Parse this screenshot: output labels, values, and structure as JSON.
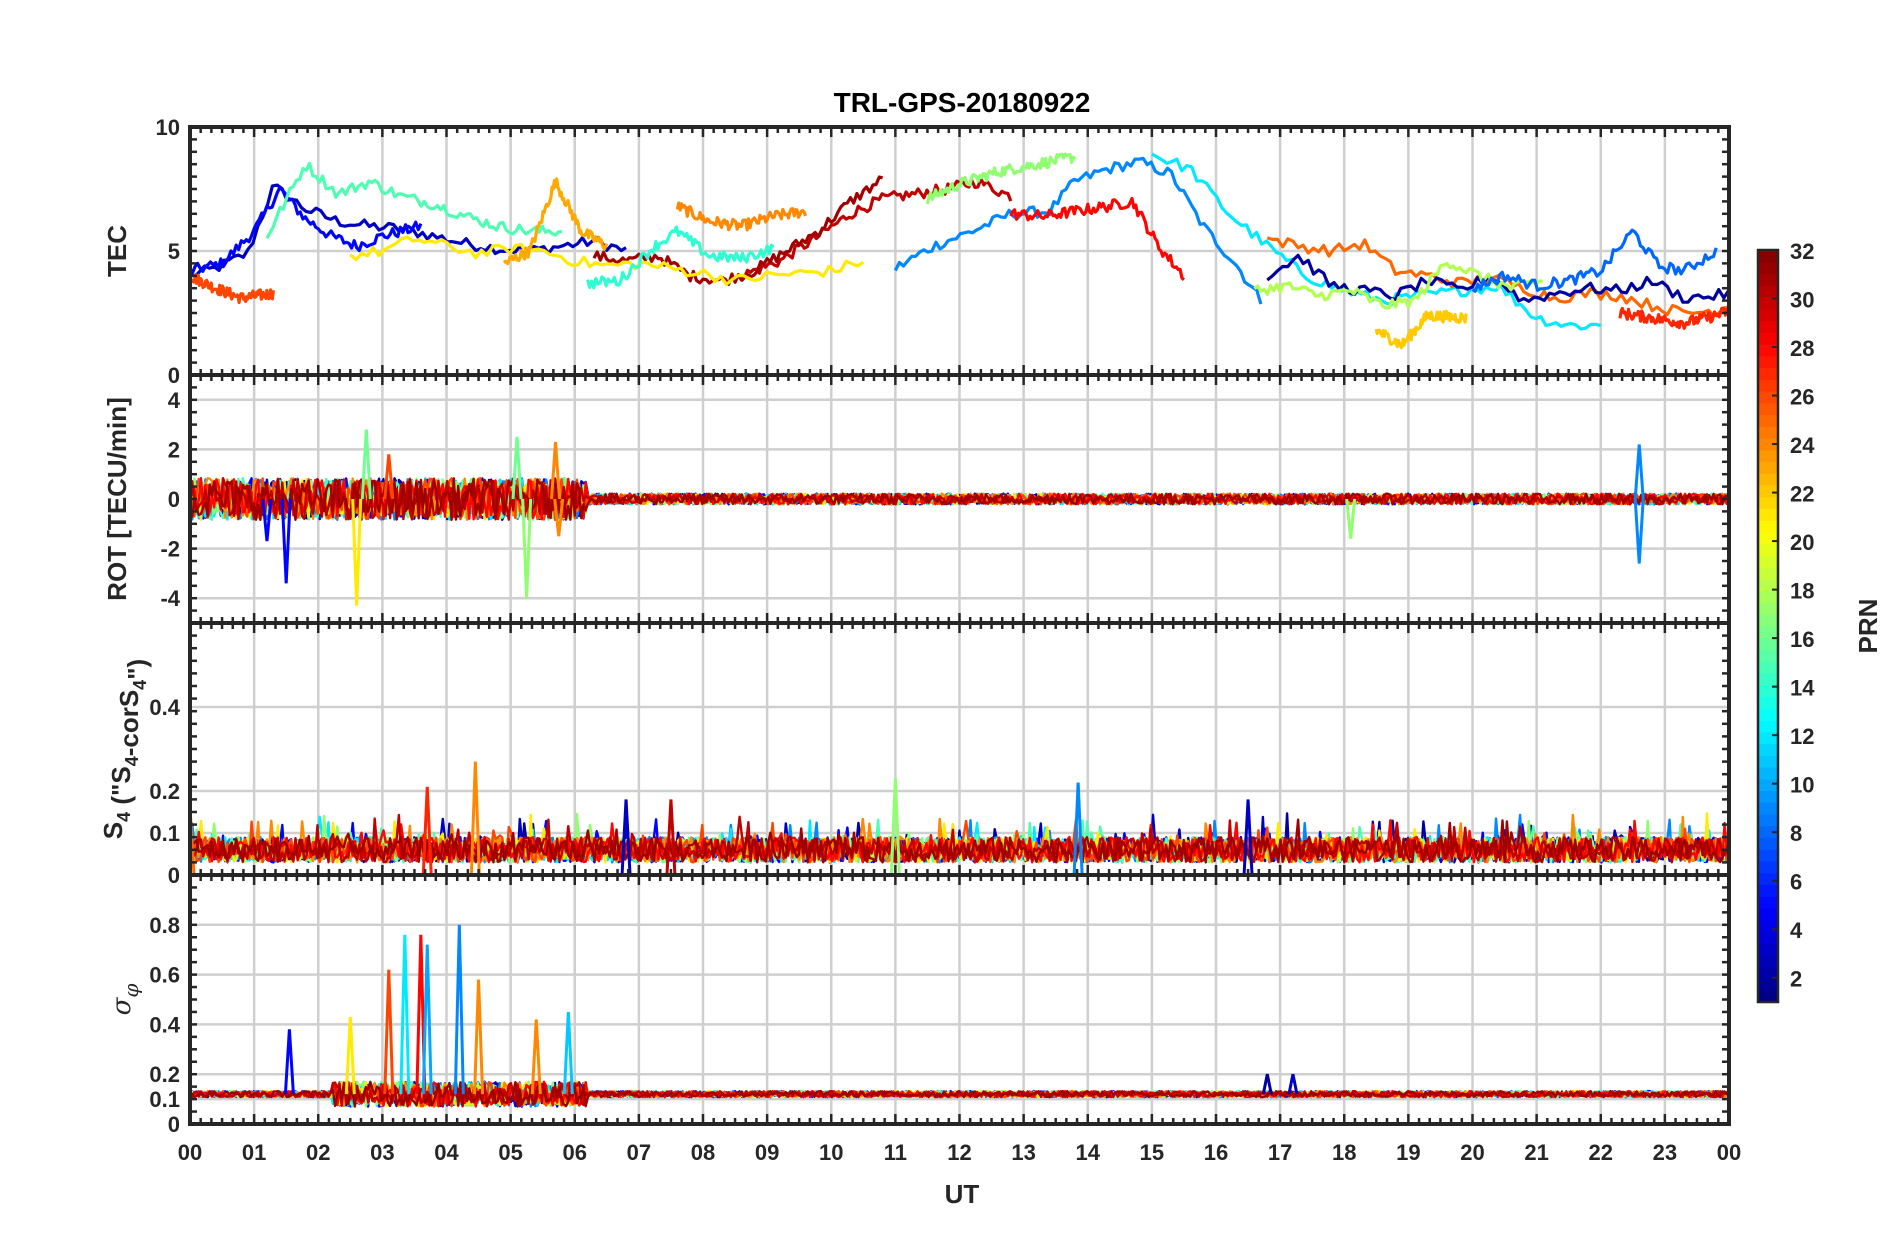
{
  "chart_data": {
    "type": "line",
    "title": "TRL-GPS-20180922",
    "xlabel": "UT",
    "x_ticks": [
      "00",
      "01",
      "02",
      "03",
      "04",
      "05",
      "06",
      "07",
      "08",
      "09",
      "10",
      "11",
      "12",
      "13",
      "14",
      "15",
      "16",
      "17",
      "18",
      "19",
      "20",
      "21",
      "22",
      "23",
      "00"
    ],
    "x_range": [
      0,
      24
    ],
    "colorbar": {
      "label": "PRN",
      "range": [
        1,
        32
      ],
      "ticks": [
        "2",
        "4",
        "6",
        "8",
        "10",
        "12",
        "14",
        "16",
        "18",
        "20",
        "22",
        "24",
        "26",
        "28",
        "30",
        "32"
      ],
      "colormap": "jet"
    },
    "panels": [
      {
        "name": "TEC",
        "ylabel": "TEC",
        "ylim": [
          0,
          10
        ],
        "yticks": [
          "0",
          "5",
          "10"
        ],
        "ytick_values": [
          0,
          5,
          10
        ],
        "series": [
          {
            "prn": 3,
            "x": [
              0,
              0.4,
              0.9,
              1.3,
              1.8,
              2.3,
              2.8,
              3.3,
              3.8,
              4.3,
              4.8,
              5.3,
              5.8,
              6.3,
              6.8
            ],
            "y": [
              4.0,
              4.3,
              4.9,
              7.6,
              6.7,
              6.2,
              6.0,
              5.9,
              5.6,
              5.3,
              5.1,
              5.0,
              5.2,
              5.4,
              5.0
            ]
          },
          {
            "prn": 5,
            "x": [
              0,
              0.5,
              1.0,
              1.4,
              1.8,
              2.2,
              2.6,
              3.0,
              3.6
            ],
            "y": [
              4.2,
              4.5,
              5.8,
              7.5,
              6.3,
              5.6,
              5.2,
              5.6,
              6.0
            ]
          },
          {
            "prn": 9,
            "x": [
              11.0,
              11.6,
              12.2,
              12.8,
              13.4,
              13.8,
              14.3,
              14.8,
              15.3,
              15.8,
              16.3,
              16.7
            ],
            "y": [
              4.3,
              5.2,
              5.8,
              6.5,
              6.6,
              7.8,
              8.3,
              8.6,
              8.1,
              6.0,
              4.5,
              3.0
            ]
          },
          {
            "prn": 30,
            "x": [
              8.6,
              9.2,
              9.8,
              10.3,
              10.8,
              11.3,
              11.8,
              12.3,
              12.8
            ],
            "y": [
              4.0,
              4.6,
              5.6,
              6.5,
              7.1,
              7.3,
              7.5,
              7.8,
              7.2
            ]
          },
          {
            "prn": 26,
            "x": [
              0,
              0.4,
              0.8,
              1.3
            ],
            "y": [
              4.0,
              3.5,
              3.1,
              3.3
            ]
          },
          {
            "prn": 31,
            "x": [
              6.3,
              6.8,
              7.3,
              7.8,
              8.3,
              8.8,
              9.3,
              9.8,
              10.3,
              10.8
            ],
            "y": [
              4.8,
              4.6,
              4.8,
              4.0,
              3.8,
              4.2,
              5.0,
              5.8,
              7.0,
              7.9
            ]
          },
          {
            "prn": 24,
            "x": [
              7.6,
              8.1,
              8.6,
              9.1,
              9.6
            ],
            "y": [
              6.8,
              6.2,
              6.0,
              6.4,
              6.6
            ]
          },
          {
            "prn": 12,
            "x": [
              15.0,
              15.6,
              16.2,
              16.8,
              17.4,
              18.0,
              18.6,
              19.2,
              19.8,
              20.4,
              21.0,
              21.5,
              22.0
            ],
            "y": [
              8.9,
              8.3,
              6.5,
              5.2,
              4.0,
              3.4,
              3.0,
              3.2,
              3.4,
              3.6,
              2.3,
              2.0,
              2.0
            ]
          },
          {
            "prn": 15,
            "x": [
              1.2,
              1.8,
              2.3,
              2.8,
              3.3,
              3.8,
              4.3,
              4.8,
              5.3,
              5.8
            ],
            "y": [
              5.6,
              8.5,
              7.3,
              7.8,
              7.2,
              6.9,
              6.4,
              6.0,
              5.8,
              5.8
            ]
          },
          {
            "prn": 17,
            "x": [
              11.5,
              12.0,
              12.6,
              13.2,
              13.8
            ],
            "y": [
              7.1,
              7.7,
              8.2,
              8.5,
              8.8
            ]
          },
          {
            "prn": 21,
            "x": [
              2.5,
              3.0,
              3.5,
              4.0,
              4.5,
              5.0,
              5.5,
              6.0,
              6.5,
              7.0,
              7.5,
              8.0,
              8.5,
              9.0,
              9.5,
              10.0,
              10.5
            ],
            "y": [
              4.8,
              5.0,
              5.5,
              5.2,
              4.9,
              5.1,
              5.0,
              4.6,
              4.4,
              4.5,
              4.3,
              4.1,
              3.8,
              4.0,
              4.1,
              4.2,
              4.6
            ]
          },
          {
            "prn": 23,
            "x": [
              4.9,
              5.3,
              5.7,
              6.1,
              6.5
            ],
            "y": [
              4.5,
              5.0,
              7.8,
              5.8,
              5.2
            ]
          },
          {
            "prn": 28,
            "x": [
              12.8,
              13.3,
              13.8,
              14.3,
              14.7,
              15.1,
              15.5
            ],
            "y": [
              6.5,
              6.4,
              6.6,
              6.8,
              7.0,
              5.2,
              4.0
            ]
          },
          {
            "prn": 25,
            "x": [
              16.8,
              17.3,
              17.8,
              18.3,
              18.8,
              19.3,
              19.8,
              20.3,
              20.8,
              21.3,
              21.8,
              22.3,
              22.8,
              23.3,
              23.8,
              24.0
            ],
            "y": [
              5.5,
              5.2,
              5.0,
              5.3,
              4.2,
              4.0,
              3.7,
              3.9,
              3.5,
              3.1,
              3.3,
              3.2,
              2.8,
              2.5,
              2.6,
              2.8
            ]
          },
          {
            "prn": 2,
            "x": [
              16.8,
              17.3,
              17.8,
              18.3,
              18.8,
              19.3,
              19.8,
              20.3,
              20.8,
              21.3,
              21.8,
              22.3,
              22.8,
              23.3,
              23.8,
              24.0
            ],
            "y": [
              4.0,
              4.8,
              3.6,
              3.4,
              3.2,
              3.8,
              3.4,
              4.0,
              3.0,
              3.3,
              3.5,
              3.4,
              3.8,
              3.1,
              3.2,
              3.3
            ]
          },
          {
            "prn": 18,
            "x": [
              16.6,
              17.1,
              17.6,
              18.1,
              18.6,
              19.1,
              19.6,
              20.1,
              20.6,
              21.1
            ],
            "y": [
              3.4,
              3.6,
              3.2,
              3.4,
              2.8,
              3.0,
              4.6,
              4.0,
              3.5,
              3.8
            ]
          },
          {
            "prn": 22,
            "x": [
              18.5,
              18.9,
              19.3,
              19.9
            ],
            "y": [
              1.8,
              1.2,
              2.4,
              2.3
            ]
          },
          {
            "prn": 8,
            "x": [
              20.0,
              20.5,
              21.0,
              21.5,
              22.0,
              22.5,
              22.9,
              23.3,
              23.8
            ],
            "y": [
              3.5,
              4.0,
              3.6,
              3.8,
              4.2,
              5.8,
              4.4,
              4.2,
              5.0
            ]
          },
          {
            "prn": 14,
            "x": [
              6.2,
              6.7,
              7.2,
              7.6,
              8.1,
              8.6,
              9.1
            ],
            "y": [
              3.7,
              3.8,
              5.1,
              5.8,
              4.8,
              4.7,
              5.1
            ]
          },
          {
            "prn": 27,
            "x": [
              22.3,
              22.8,
              23.3,
              23.8,
              24.0
            ],
            "y": [
              2.5,
              2.3,
              2.1,
              2.4,
              2.6
            ]
          }
        ]
      },
      {
        "name": "ROT",
        "ylabel": "ROT [TECU/min]",
        "ylim": [
          -5,
          5
        ],
        "yticks": [
          "-4",
          "-2",
          "0",
          "2",
          "4"
        ],
        "ytick_values": [
          -4,
          -2,
          0,
          2,
          4
        ],
        "baseline": 0,
        "active_hours": [
          [
            0,
            6.2,
            0.6
          ]
        ],
        "spikes": [
          {
            "x": 1.2,
            "y": -1.7,
            "prn": 5
          },
          {
            "x": 1.5,
            "y": -3.4,
            "prn": 5
          },
          {
            "x": 2.6,
            "y": -4.3,
            "prn": 21
          },
          {
            "x": 2.75,
            "y": 2.8,
            "prn": 16
          },
          {
            "x": 3.1,
            "y": 1.8,
            "prn": 26
          },
          {
            "x": 5.25,
            "y": -4.0,
            "prn": 17
          },
          {
            "x": 5.1,
            "y": 2.5,
            "prn": 16
          },
          {
            "x": 5.7,
            "y": 2.3,
            "prn": 24
          },
          {
            "x": 5.75,
            "y": -1.5,
            "prn": 24
          },
          {
            "x": 18.1,
            "y": -1.6,
            "prn": 17
          },
          {
            "x": 22.6,
            "y": 2.2,
            "prn": 9
          },
          {
            "x": 22.6,
            "y": -2.6,
            "prn": 9
          }
        ]
      },
      {
        "name": "S4",
        "ylabel": "S4 (\"S4-corS4\")",
        "ylim": [
          0,
          0.6
        ],
        "yticks": [
          "0",
          "0.1",
          "0.2",
          "0.4"
        ],
        "ytick_values": [
          0,
          0.1,
          0.2,
          0.4
        ],
        "noise_level": [
          0.02,
          0.1
        ],
        "spikes": [
          {
            "x": 4.45,
            "y": 0.27,
            "prn": 24
          },
          {
            "x": 3.7,
            "y": 0.21,
            "prn": 27
          },
          {
            "x": 11.0,
            "y": 0.23,
            "prn": 17
          },
          {
            "x": 13.85,
            "y": 0.22,
            "prn": 9
          },
          {
            "x": 7.5,
            "y": 0.18,
            "prn": 30
          },
          {
            "x": 6.8,
            "y": 0.18,
            "prn": 3
          },
          {
            "x": 16.5,
            "y": 0.18,
            "prn": 3
          },
          {
            "x": 0.0,
            "y": 0.16,
            "prn": 25
          }
        ]
      },
      {
        "name": "sigma_phi",
        "ylabel": "σ_φ",
        "ylim": [
          0,
          1.0
        ],
        "yticks": [
          "0",
          "0.1",
          "0.2",
          "0.4",
          "0.6",
          "0.8"
        ],
        "ytick_values": [
          0,
          0.1,
          0.2,
          0.4,
          0.6,
          0.8
        ],
        "baseline": 0.12,
        "spikes": [
          {
            "x": 1.55,
            "y": 0.38,
            "prn": 5
          },
          {
            "x": 2.5,
            "y": 0.43,
            "prn": 21
          },
          {
            "x": 3.1,
            "y": 0.62,
            "prn": 26
          },
          {
            "x": 3.35,
            "y": 0.76,
            "prn": 12
          },
          {
            "x": 3.6,
            "y": 0.76,
            "prn": 28
          },
          {
            "x": 3.7,
            "y": 0.72,
            "prn": 10
          },
          {
            "x": 4.2,
            "y": 0.8,
            "prn": 9
          },
          {
            "x": 4.5,
            "y": 0.58,
            "prn": 24
          },
          {
            "x": 5.4,
            "y": 0.42,
            "prn": 24
          },
          {
            "x": 5.9,
            "y": 0.45,
            "prn": 11
          },
          {
            "x": 16.8,
            "y": 0.2,
            "prn": 2
          },
          {
            "x": 17.2,
            "y": 0.2,
            "prn": 3
          }
        ]
      }
    ]
  }
}
